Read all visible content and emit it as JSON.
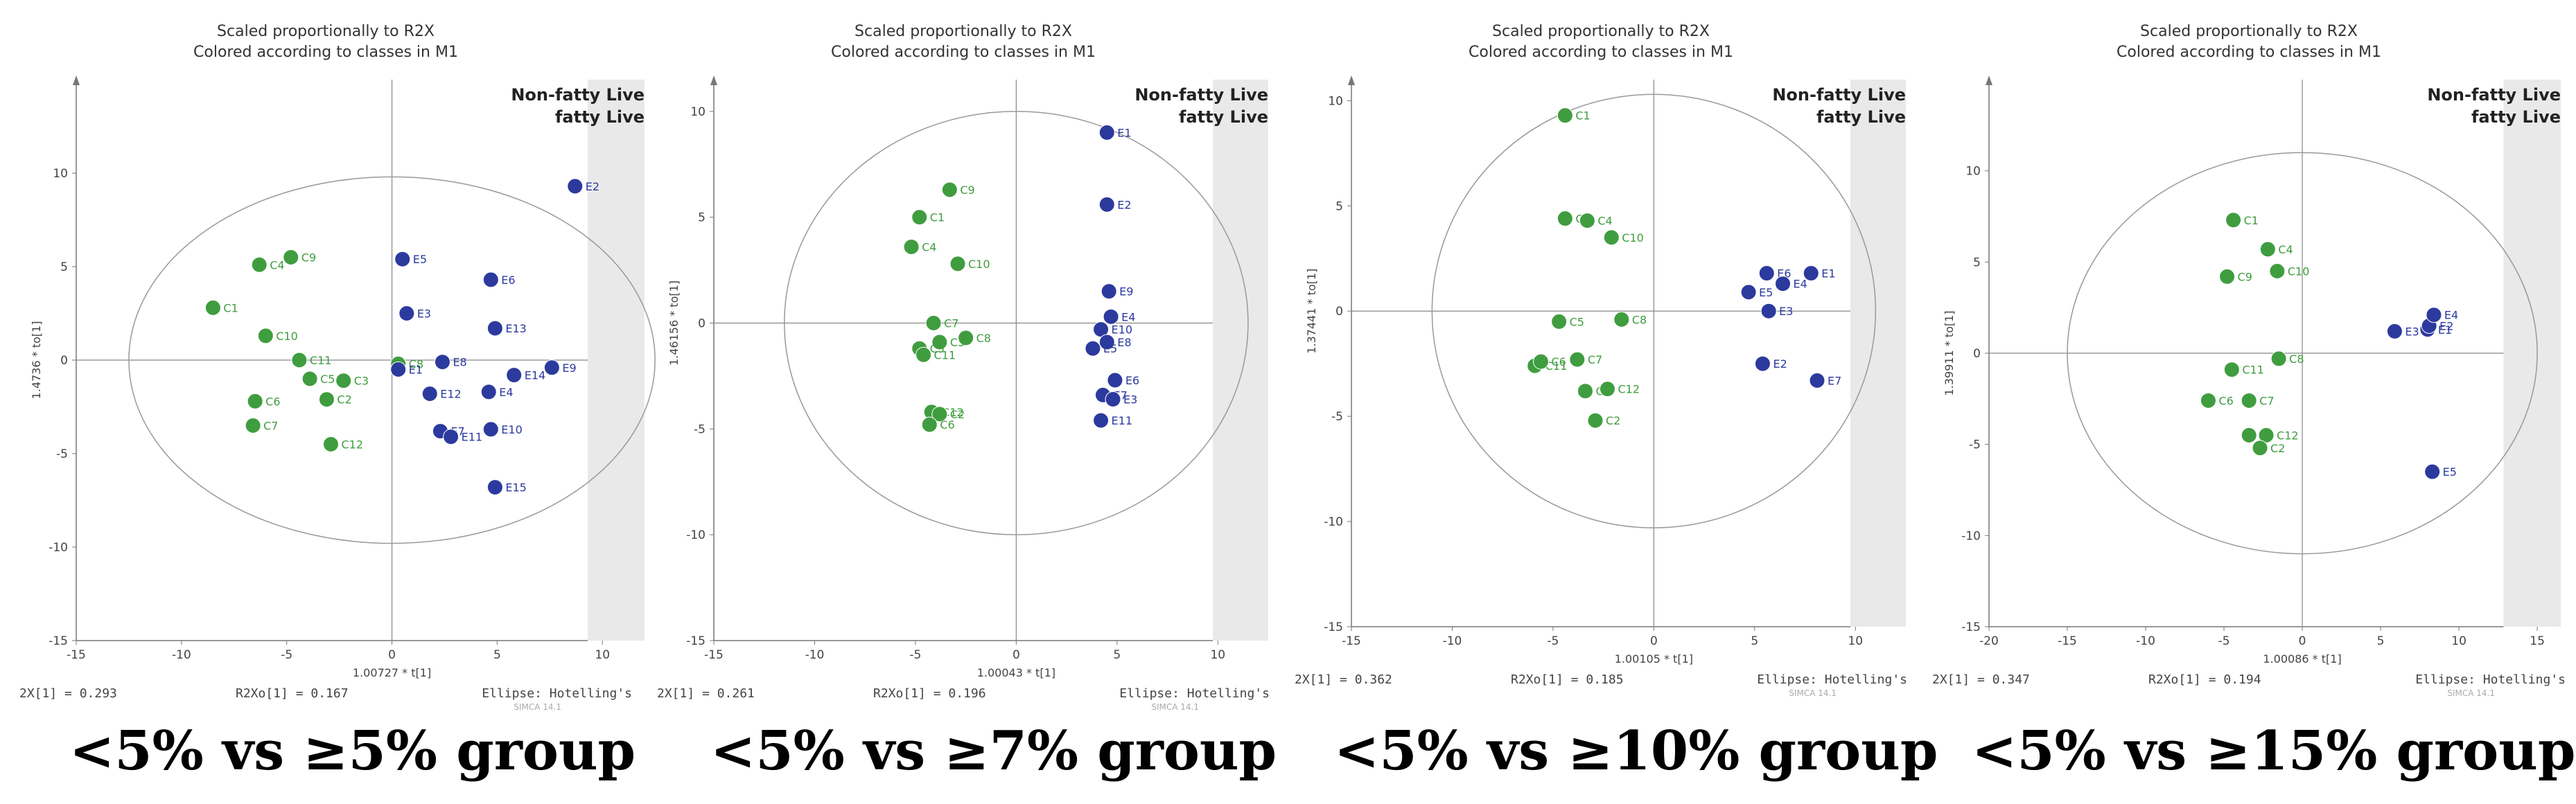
{
  "colors": {
    "class_C": "#3f9d3f",
    "class_E": "#2c3a9e",
    "frame": "#e9e9e9",
    "plot_bg": "#ffffff"
  },
  "chart_data": [
    {
      "type": "scatter",
      "title": "Scaled proportionally to R2X",
      "subtitle": "Colored according to classes in M1",
      "xlabel": "1.00727 * t[1]",
      "ylabel": "1.4736 * to[1]",
      "xlim": [
        -15,
        12
      ],
      "ylim": [
        -15,
        15
      ],
      "xticks": [
        -15,
        -10,
        -5,
        0,
        5,
        10
      ],
      "yticks": [
        -15,
        -10,
        -5,
        0,
        5,
        10
      ],
      "legend": [
        "Non-fatty Live",
        "fatty Live"
      ],
      "legend_position": "top-right",
      "footer": [
        "2X[1] = 0.293",
        "R2Xo[1] = 0.167",
        "Ellipse: Hotelling's"
      ],
      "watermark": "SIMCA 14.1",
      "ellipse": {
        "rx": 12.5,
        "ry": 9.8
      },
      "caption": "<5% vs ≥5% group",
      "series": [
        {
          "name": "Non-fatty Live",
          "points": [
            {
              "label": "C1",
              "x": -8.5,
              "y": 2.8
            },
            {
              "label": "C4",
              "x": -6.3,
              "y": 5.1
            },
            {
              "label": "C9",
              "x": -4.8,
              "y": 5.5
            },
            {
              "label": "C10",
              "x": -6.0,
              "y": 1.3
            },
            {
              "label": "C11",
              "x": -4.4,
              "y": 0.0
            },
            {
              "label": "C5",
              "x": -3.9,
              "y": -1.0
            },
            {
              "label": "C3",
              "x": -2.3,
              "y": -1.1
            },
            {
              "label": "C2",
              "x": -3.1,
              "y": -2.1
            },
            {
              "label": "C6",
              "x": -6.5,
              "y": -2.2
            },
            {
              "label": "C7",
              "x": -6.6,
              "y": -3.5
            },
            {
              "label": "C12",
              "x": -2.9,
              "y": -4.5
            },
            {
              "label": "C8",
              "x": 0.3,
              "y": -0.2
            }
          ]
        },
        {
          "name": "fatty Live",
          "points": [
            {
              "label": "E2",
              "x": 8.7,
              "y": 9.3
            },
            {
              "label": "E5",
              "x": 0.5,
              "y": 5.4
            },
            {
              "label": "E6",
              "x": 4.7,
              "y": 4.3
            },
            {
              "label": "E3",
              "x": 0.7,
              "y": 2.5
            },
            {
              "label": "E13",
              "x": 4.9,
              "y": 1.7
            },
            {
              "label": "E8",
              "x": 2.4,
              "y": -0.1
            },
            {
              "label": "E14",
              "x": 5.8,
              "y": -0.8
            },
            {
              "label": "E9",
              "x": 7.6,
              "y": -0.4
            },
            {
              "label": "E1",
              "x": 0.3,
              "y": -0.5
            },
            {
              "label": "E12",
              "x": 1.8,
              "y": -1.8
            },
            {
              "label": "E4",
              "x": 4.6,
              "y": -1.7
            },
            {
              "label": "E7",
              "x": 2.3,
              "y": -3.8
            },
            {
              "label": "E11",
              "x": 2.8,
              "y": -4.1
            },
            {
              "label": "E10",
              "x": 4.7,
              "y": -3.7
            },
            {
              "label": "E15",
              "x": 4.9,
              "y": -6.8
            }
          ]
        }
      ]
    },
    {
      "type": "scatter",
      "title": "Scaled proportionally to R2X",
      "subtitle": "Colored according to classes in M1",
      "xlabel": "1.00043 * t[1]",
      "ylabel": "1.46156 * to[1]",
      "xlim": [
        -15,
        12.5
      ],
      "ylim": [
        -15,
        11.5
      ],
      "xticks": [
        -15,
        -10,
        -5,
        0,
        5,
        10
      ],
      "yticks": [
        -15,
        -10,
        -5,
        0,
        5,
        10
      ],
      "legend": [
        "Non-fatty Live",
        "fatty Live"
      ],
      "legend_position": "top-right",
      "footer": [
        "2X[1] = 0.261",
        "R2Xo[1] = 0.196",
        "Ellipse: Hotelling's"
      ],
      "watermark": "SIMCA 14.1",
      "ellipse": {
        "rx": 11.5,
        "ry": 10.0
      },
      "caption": "<5% vs ≥7% group",
      "series": [
        {
          "name": "Non-fatty Live",
          "points": [
            {
              "label": "C9",
              "x": -3.3,
              "y": 6.3
            },
            {
              "label": "C1",
              "x": -4.8,
              "y": 5.0
            },
            {
              "label": "C4",
              "x": -5.2,
              "y": 3.6
            },
            {
              "label": "C10",
              "x": -2.9,
              "y": 2.8
            },
            {
              "label": "C7",
              "x": -4.1,
              "y": 0.0
            },
            {
              "label": "C8",
              "x": -2.5,
              "y": -0.7
            },
            {
              "label": "C3",
              "x": -3.8,
              "y": -0.9
            },
            {
              "label": "C5",
              "x": -4.8,
              "y": -1.2
            },
            {
              "label": "C11",
              "x": -4.6,
              "y": -1.5
            },
            {
              "label": "C12",
              "x": -4.2,
              "y": -4.2
            },
            {
              "label": "C2",
              "x": -3.8,
              "y": -4.3
            },
            {
              "label": "C6",
              "x": -4.3,
              "y": -4.8
            }
          ]
        },
        {
          "name": "fatty Live",
          "points": [
            {
              "label": "E1",
              "x": 4.5,
              "y": 9.0
            },
            {
              "label": "E2",
              "x": 4.5,
              "y": 5.6
            },
            {
              "label": "E9",
              "x": 4.6,
              "y": 1.5
            },
            {
              "label": "E4",
              "x": 4.7,
              "y": 0.3
            },
            {
              "label": "E10",
              "x": 4.2,
              "y": -0.3
            },
            {
              "label": "E8",
              "x": 4.5,
              "y": -0.9
            },
            {
              "label": "E5",
              "x": 3.8,
              "y": -1.2
            },
            {
              "label": "E6",
              "x": 4.9,
              "y": -2.7
            },
            {
              "label": "E7",
              "x": 4.3,
              "y": -3.4
            },
            {
              "label": "E3",
              "x": 4.8,
              "y": -3.6
            },
            {
              "label": "E11",
              "x": 4.2,
              "y": -4.6
            }
          ]
        }
      ]
    },
    {
      "type": "scatter",
      "title": "Scaled proportionally to R2X",
      "subtitle": "Colored according to classes in M1",
      "xlabel": "1.00105 * t[1]",
      "ylabel": "1.37441 * to[1]",
      "xlim": [
        -15,
        12.5
      ],
      "ylim": [
        -15,
        11
      ],
      "xticks": [
        -15,
        -10,
        -5,
        0,
        5,
        10
      ],
      "yticks": [
        -15,
        -10,
        -5,
        0,
        5,
        10
      ],
      "legend": [
        "Non-fatty Live",
        "fatty Live"
      ],
      "legend_position": "top-right",
      "footer": [
        "2X[1] = 0.362",
        "R2Xo[1] = 0.185",
        "Ellipse: Hotelling's"
      ],
      "watermark": "SIMCA 14.1",
      "ellipse": {
        "rx": 11.0,
        "ry": 10.3
      },
      "caption": "<5% vs ≥10% group",
      "series": [
        {
          "name": "Non-fatty Live",
          "points": [
            {
              "label": "C1",
              "x": -4.4,
              "y": 9.3
            },
            {
              "label": "C9",
              "x": -4.4,
              "y": 4.4
            },
            {
              "label": "C4",
              "x": -3.3,
              "y": 4.3
            },
            {
              "label": "C10",
              "x": -2.1,
              "y": 3.5
            },
            {
              "label": "C5",
              "x": -4.7,
              "y": -0.5
            },
            {
              "label": "C8",
              "x": -1.6,
              "y": -0.4
            },
            {
              "label": "C11",
              "x": -5.9,
              "y": -2.6
            },
            {
              "label": "C6",
              "x": -5.6,
              "y": -2.4
            },
            {
              "label": "C7",
              "x": -3.8,
              "y": -2.3
            },
            {
              "label": "C3",
              "x": -3.4,
              "y": -3.8
            },
            {
              "label": "C12",
              "x": -2.3,
              "y": -3.7
            },
            {
              "label": "C2",
              "x": -2.9,
              "y": -5.2
            }
          ]
        },
        {
          "name": "fatty Live",
          "points": [
            {
              "label": "E6",
              "x": 5.6,
              "y": 1.8
            },
            {
              "label": "E1",
              "x": 7.8,
              "y": 1.8
            },
            {
              "label": "E4",
              "x": 6.4,
              "y": 1.3
            },
            {
              "label": "E5",
              "x": 4.7,
              "y": 0.9
            },
            {
              "label": "E3",
              "x": 5.7,
              "y": 0.0
            },
            {
              "label": "E2",
              "x": 5.4,
              "y": -2.5
            },
            {
              "label": "E7",
              "x": 8.1,
              "y": -3.3
            }
          ]
        }
      ]
    },
    {
      "type": "scatter",
      "title": "Scaled proportionally to R2X",
      "subtitle": "Colored according to classes in M1",
      "xlabel": "1.00086 * t[1]",
      "ylabel": "1.39911 * to[1]",
      "xlim": [
        -20,
        16.5
      ],
      "ylim": [
        -15,
        15
      ],
      "xticks": [
        -20,
        -15,
        -10,
        -5,
        0,
        5,
        10,
        15
      ],
      "yticks": [
        -15,
        -10,
        -5,
        0,
        5,
        10
      ],
      "legend": [
        "Non-fatty Live",
        "fatty Live"
      ],
      "legend_position": "top-right",
      "footer": [
        "2X[1] = 0.347",
        "R2Xo[1] = 0.194",
        "Ellipse: Hotelling's"
      ],
      "watermark": "SIMCA 14.1",
      "ellipse": {
        "rx": 15.0,
        "ry": 11.0
      },
      "caption": "<5% vs ≥15% group",
      "series": [
        {
          "name": "Non-fatty Live",
          "points": [
            {
              "label": "C1",
              "x": -4.4,
              "y": 7.3
            },
            {
              "label": "C4",
              "x": -2.2,
              "y": 5.7
            },
            {
              "label": "C10",
              "x": -1.6,
              "y": 4.5
            },
            {
              "label": "C9",
              "x": -4.8,
              "y": 4.2
            },
            {
              "label": "C8",
              "x": -1.5,
              "y": -0.3
            },
            {
              "label": "C11",
              "x": -4.5,
              "y": -0.9
            },
            {
              "label": "C6",
              "x": -6.0,
              "y": -2.6
            },
            {
              "label": "C7",
              "x": -3.4,
              "y": -2.6
            },
            {
              "label": "C3",
              "x": -3.4,
              "y": -4.5
            },
            {
              "label": "C12",
              "x": -2.3,
              "y": -4.5
            },
            {
              "label": "C2",
              "x": -2.7,
              "y": -5.2
            }
          ]
        },
        {
          "name": "fatty Live",
          "points": [
            {
              "label": "E3",
              "x": 5.9,
              "y": 1.2
            },
            {
              "label": "E1",
              "x": 8.0,
              "y": 1.3
            },
            {
              "label": "E2",
              "x": 8.1,
              "y": 1.5
            },
            {
              "label": "E4",
              "x": 8.4,
              "y": 2.1
            },
            {
              "label": "E5",
              "x": 8.3,
              "y": -6.5
            }
          ]
        }
      ]
    }
  ]
}
